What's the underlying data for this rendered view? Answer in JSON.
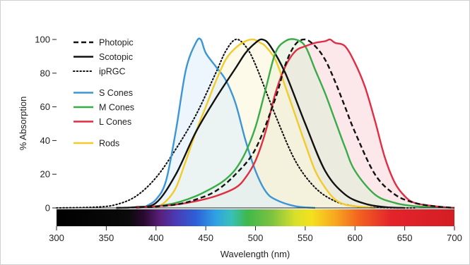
{
  "chart_data": {
    "type": "line",
    "title": "",
    "xlabel": "Wavelength (nm)",
    "ylabel": "% Absorption",
    "xlim": [
      300,
      700
    ],
    "ylim": [
      0,
      100
    ],
    "x_ticks": [
      "300",
      "350",
      "400",
      "450",
      "500",
      "550",
      "600",
      "650",
      "700"
    ],
    "y_ticks": [
      "0",
      "20",
      "40",
      "60",
      "80",
      "100"
    ],
    "grid": false,
    "legend_position": "top-left",
    "spectrum_bar": "visible spectrum color band (300-700 nm) below the x-axis baseline",
    "series": [
      {
        "name": "Photopic",
        "style": "dashed",
        "color": "#111111",
        "fill": null,
        "x": [
          360,
          390,
          420,
          440,
          460,
          480,
          500,
          520,
          530,
          540,
          550,
          560,
          570,
          580,
          590,
          600,
          620,
          640,
          660,
          680,
          700
        ],
        "y": [
          0,
          0.5,
          2,
          5,
          10,
          20,
          35,
          65,
          85,
          97,
          100,
          96,
          88,
          75,
          60,
          45,
          20,
          8,
          3,
          1,
          0
        ]
      },
      {
        "name": "Scotopic",
        "style": "solid",
        "color": "#111111",
        "fill": null,
        "x": [
          360,
          380,
          400,
          420,
          440,
          460,
          480,
          490,
          500,
          507,
          515,
          530,
          550,
          570,
          590,
          610,
          630,
          650
        ],
        "y": [
          0,
          0.5,
          3,
          20,
          45,
          65,
          83,
          92,
          98,
          100,
          96,
          80,
          50,
          22,
          8,
          2.5,
          0.5,
          0
        ]
      },
      {
        "name": "ipRGC",
        "style": "dotted",
        "color": "#111111",
        "fill": null,
        "x": [
          300,
          340,
          360,
          380,
          400,
          420,
          440,
          460,
          470,
          480,
          490,
          500,
          520,
          540,
          560,
          580,
          600,
          620,
          640,
          660
        ],
        "y": [
          0,
          0.5,
          2,
          7,
          18,
          35,
          55,
          80,
          93,
          100,
          96,
          85,
          55,
          28,
          12,
          4,
          1,
          0.3,
          0,
          0
        ]
      },
      {
        "name": "S Cones",
        "style": "solid",
        "color": "#3d95d3",
        "fill": "#dceefa",
        "x": [
          390,
          400,
          410,
          420,
          430,
          440,
          445,
          450,
          460,
          470,
          480,
          490,
          500,
          510,
          520,
          540,
          560
        ],
        "y": [
          1,
          5,
          16,
          46,
          82,
          98,
          100,
          92,
          84,
          76,
          62,
          40,
          22,
          10,
          5,
          1,
          0
        ]
      },
      {
        "name": "M Cones",
        "style": "solid",
        "color": "#3aab49",
        "fill": "#dfefd6",
        "x": [
          380,
          400,
          420,
          440,
          460,
          470,
          480,
          490,
          500,
          510,
          520,
          530,
          540,
          550,
          560,
          570,
          580,
          590,
          600,
          620,
          640,
          660,
          680,
          700
        ],
        "y": [
          0,
          1,
          3,
          7,
          13,
          17,
          23,
          33,
          48,
          70,
          92,
          99,
          100,
          96,
          82,
          68,
          52,
          36,
          22,
          8,
          3,
          1,
          0.5,
          0
        ]
      },
      {
        "name": "L Cones",
        "style": "solid",
        "color": "#e02d44",
        "fill": "#f9d3d8",
        "x": [
          380,
          400,
          420,
          440,
          460,
          480,
          490,
          500,
          510,
          520,
          530,
          540,
          550,
          560,
          570,
          575,
          580,
          590,
          600,
          610,
          620,
          630,
          640,
          650,
          660,
          680,
          700
        ],
        "y": [
          0,
          1,
          2,
          4,
          7,
          12,
          18,
          28,
          45,
          68,
          84,
          93,
          96,
          98,
          99,
          100,
          98,
          96,
          86,
          72,
          52,
          30,
          15,
          7,
          3,
          1,
          0
        ]
      },
      {
        "name": "Rods",
        "style": "solid",
        "color": "#f2cb2a",
        "fill": "#fbf5d9",
        "x": [
          400,
          410,
          420,
          430,
          440,
          450,
          460,
          470,
          480,
          490,
          498,
          505,
          510,
          520,
          530,
          540,
          550,
          560,
          570,
          580,
          590,
          600,
          610,
          620
        ],
        "y": [
          0,
          4,
          12,
          28,
          45,
          60,
          75,
          88,
          95,
          99,
          100,
          98,
          96,
          88,
          72,
          55,
          38,
          22,
          12,
          5,
          2,
          1,
          0.5,
          0
        ]
      }
    ]
  }
}
